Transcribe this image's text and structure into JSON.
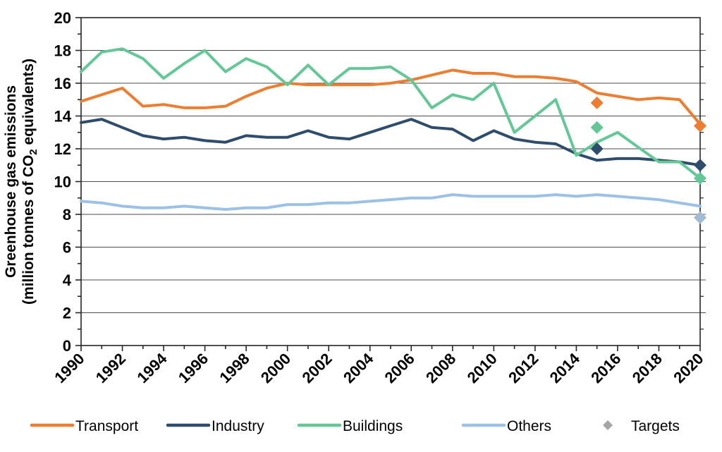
{
  "chart_data": {
    "type": "line",
    "title": "",
    "ylabel_line1": "Greenhouse gas emissions",
    "ylabel_line2": "(million tonnes of CO2 equivalents)",
    "ylim": [
      0,
      20
    ],
    "ytick_step": 2,
    "xtick_label_step": 2,
    "grid": "horizontal-major",
    "legend_position": "bottom",
    "axis_color": "#262626",
    "grid_color": "#4d4d4d",
    "years": [
      1990,
      1991,
      1992,
      1993,
      1994,
      1995,
      1996,
      1997,
      1998,
      1999,
      2000,
      2001,
      2002,
      2003,
      2004,
      2005,
      2006,
      2007,
      2008,
      2009,
      2010,
      2011,
      2012,
      2013,
      2014,
      2015,
      2016,
      2017,
      2018,
      2019,
      2020
    ],
    "series": [
      {
        "name": "Transport",
        "color": "#ED7D31",
        "values": [
          14.9,
          15.3,
          15.7,
          14.6,
          14.7,
          14.5,
          14.5,
          14.6,
          15.2,
          15.7,
          16.0,
          15.9,
          15.9,
          15.9,
          15.9,
          16.0,
          16.2,
          16.5,
          16.8,
          16.6,
          16.6,
          16.4,
          16.4,
          16.3,
          16.1,
          15.4,
          15.2,
          15.0,
          15.1,
          15.0,
          13.5
        ]
      },
      {
        "name": "Industry",
        "color": "#2E4D6E",
        "values": [
          13.6,
          13.8,
          13.3,
          12.8,
          12.6,
          12.7,
          12.5,
          12.4,
          12.8,
          12.7,
          12.7,
          13.1,
          12.7,
          12.6,
          13.0,
          13.4,
          13.8,
          13.3,
          13.2,
          12.5,
          13.1,
          12.6,
          12.4,
          12.3,
          11.7,
          11.3,
          11.4,
          11.4,
          11.3,
          11.2,
          11.0
        ]
      },
      {
        "name": "Buildings",
        "color": "#64C896",
        "values": [
          16.7,
          17.9,
          18.1,
          17.5,
          16.3,
          17.2,
          18.0,
          16.7,
          17.5,
          17.0,
          15.9,
          17.1,
          15.9,
          16.9,
          16.9,
          17.0,
          16.2,
          14.5,
          15.3,
          15.0,
          16.0,
          13.0,
          14.0,
          15.0,
          11.6,
          12.4,
          13.0,
          12.1,
          11.2,
          11.2,
          10.2
        ]
      },
      {
        "name": "Others",
        "color": "#9BC2E6",
        "values": [
          8.8,
          8.7,
          8.5,
          8.4,
          8.4,
          8.5,
          8.4,
          8.3,
          8.4,
          8.4,
          8.6,
          8.6,
          8.7,
          8.7,
          8.8,
          8.9,
          9.0,
          9.0,
          9.2,
          9.1,
          9.1,
          9.1,
          9.1,
          9.2,
          9.1,
          9.2,
          9.1,
          9.0,
          8.9,
          8.7,
          8.5
        ]
      }
    ],
    "targets": [
      {
        "series": "Transport",
        "year": 2015,
        "value": 14.8,
        "color": "#ED7D31"
      },
      {
        "series": "Buildings",
        "year": 2015,
        "value": 13.3,
        "color": "#64C896"
      },
      {
        "series": "Industry",
        "year": 2015,
        "value": 12.0,
        "color": "#2E4D6E"
      },
      {
        "series": "Transport",
        "year": 2020,
        "value": 13.4,
        "color": "#ED7D31"
      },
      {
        "series": "Industry",
        "year": 2020,
        "value": 11.0,
        "color": "#2E4D6E"
      },
      {
        "series": "Buildings",
        "year": 2020,
        "value": 10.2,
        "color": "#64C896"
      },
      {
        "series": "Others",
        "year": 2020,
        "value": 7.8,
        "color": "#A3BBD1"
      }
    ],
    "legend": [
      {
        "label": "Transport",
        "marker": "line",
        "color": "#ED7D31"
      },
      {
        "label": "Industry",
        "marker": "line",
        "color": "#2E4D6E"
      },
      {
        "label": "Buildings",
        "marker": "line",
        "color": "#64C896"
      },
      {
        "label": "Others",
        "marker": "line",
        "color": "#9BC2E6"
      },
      {
        "label": "Targets",
        "marker": "diamond",
        "color": "#A6A6A6"
      }
    ]
  }
}
